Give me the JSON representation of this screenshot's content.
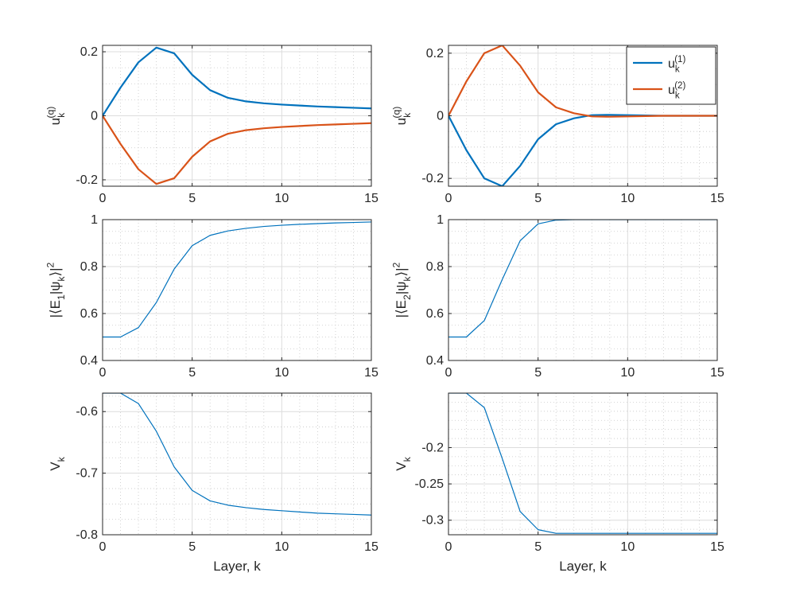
{
  "colors": {
    "series1": "#0072BD",
    "series2": "#D95319",
    "axis": "#262626",
    "grid_major": "#dcdcdc",
    "grid_minor": "#c8c8c8",
    "zero_line": "#cccccc"
  },
  "chart_data": [
    {
      "type": "line",
      "xlabel": "",
      "ylabel": "u_k^(q)",
      "xlim": [
        0,
        15
      ],
      "ylim": [
        -0.22,
        0.22
      ],
      "xticks": [
        0,
        5,
        10,
        15
      ],
      "xtick_labels": [
        "0",
        "5",
        "10",
        "15"
      ],
      "yticks": [
        -0.2,
        0,
        0.2
      ],
      "ytick_labels": [
        "-0.2",
        "0",
        "0.2"
      ],
      "grid": true,
      "minor_grid": true,
      "x": [
        0,
        1,
        2,
        3,
        4,
        5,
        6,
        7,
        8,
        9,
        10,
        11,
        12,
        13,
        14,
        15
      ],
      "series": [
        {
          "values": [
            0,
            0.088,
            0.167,
            0.213,
            0.195,
            0.128,
            0.08,
            0.056,
            0.045,
            0.039,
            0.035,
            0.032,
            0.029,
            0.027,
            0.025,
            0.023
          ],
          "color": "series1",
          "width": 2.2
        },
        {
          "values": [
            0,
            -0.088,
            -0.167,
            -0.213,
            -0.195,
            -0.128,
            -0.08,
            -0.056,
            -0.045,
            -0.039,
            -0.035,
            -0.032,
            -0.029,
            -0.027,
            -0.025,
            -0.023
          ],
          "color": "series2",
          "width": 2.2
        }
      ]
    },
    {
      "type": "line",
      "xlabel": "",
      "ylabel": "u_k^(q)",
      "xlim": [
        0,
        15
      ],
      "ylim": [
        -0.225,
        0.225
      ],
      "xticks": [
        0,
        5,
        10,
        15
      ],
      "xtick_labels": [
        "0",
        "5",
        "10",
        "15"
      ],
      "yticks": [
        -0.2,
        0,
        0.2
      ],
      "ytick_labels": [
        "-0.2",
        "0",
        "0.2"
      ],
      "grid": true,
      "minor_grid": true,
      "legend": {
        "position": "top-right",
        "entries": [
          "u_k^(1)",
          "u_k^(2)"
        ]
      },
      "x": [
        0,
        1,
        2,
        3,
        4,
        5,
        6,
        7,
        8,
        9,
        10,
        11,
        12,
        13,
        14,
        15
      ],
      "series": [
        {
          "name": "u_k^(1)",
          "values": [
            0,
            -0.11,
            -0.2,
            -0.225,
            -0.16,
            -0.075,
            -0.027,
            -0.008,
            0.002,
            0.003,
            0.002,
            0.001,
            0.0,
            0.0,
            0.0,
            0.0
          ],
          "color": "series1",
          "width": 2.2
        },
        {
          "name": "u_k^(2)",
          "values": [
            0,
            0.11,
            0.2,
            0.225,
            0.16,
            0.075,
            0.027,
            0.008,
            -0.002,
            -0.003,
            -0.002,
            -0.001,
            0.0,
            0.0,
            0.0,
            0.0
          ],
          "color": "series2",
          "width": 2.2
        }
      ]
    },
    {
      "type": "line",
      "xlabel": "",
      "ylabel": "|⟨E_1|ψ_k⟩|^2",
      "xlim": [
        0,
        15
      ],
      "ylim": [
        0.4,
        1.0
      ],
      "xticks": [
        0,
        5,
        10,
        15
      ],
      "xtick_labels": [
        "0",
        "5",
        "10",
        "15"
      ],
      "yticks": [
        0.4,
        0.6,
        0.8,
        1.0
      ],
      "ytick_labels": [
        "0.4",
        "0.6",
        "0.8",
        "1"
      ],
      "grid": true,
      "minor_grid": true,
      "x": [
        0,
        1,
        2,
        3,
        4,
        5,
        6,
        7,
        8,
        9,
        10,
        11,
        12,
        13,
        14,
        15
      ],
      "series": [
        {
          "values": [
            0.5,
            0.5,
            0.54,
            0.647,
            0.79,
            0.889,
            0.933,
            0.952,
            0.963,
            0.971,
            0.976,
            0.98,
            0.983,
            0.986,
            0.988,
            0.99
          ],
          "color": "series1",
          "width": 1.2
        }
      ]
    },
    {
      "type": "line",
      "xlabel": "",
      "ylabel": "|⟨E_2|ψ_k⟩|^2",
      "xlim": [
        0,
        15
      ],
      "ylim": [
        0.4,
        1.0
      ],
      "xticks": [
        0,
        5,
        10,
        15
      ],
      "xtick_labels": [
        "0",
        "5",
        "10",
        "15"
      ],
      "yticks": [
        0.4,
        0.6,
        0.8,
        1.0
      ],
      "ytick_labels": [
        "0.4",
        "0.6",
        "0.8",
        "1"
      ],
      "grid": true,
      "minor_grid": true,
      "x": [
        0,
        1,
        2,
        3,
        4,
        5,
        6,
        7,
        8,
        9,
        10,
        11,
        12,
        13,
        14,
        15
      ],
      "series": [
        {
          "values": [
            0.5,
            0.5,
            0.57,
            0.745,
            0.91,
            0.982,
            0.998,
            1.0,
            1.0,
            1.0,
            1.0,
            1.0,
            1.0,
            1.0,
            1.0,
            1.0
          ],
          "color": "series1",
          "width": 1.2
        }
      ]
    },
    {
      "type": "line",
      "xlabel": "Layer, k",
      "ylabel": "V_k",
      "xlim": [
        0,
        15
      ],
      "ylim": [
        -0.8,
        -0.57
      ],
      "xticks": [
        0,
        5,
        10,
        15
      ],
      "xtick_labels": [
        "0",
        "5",
        "10",
        "15"
      ],
      "yticks": [
        -0.8,
        -0.7,
        -0.6
      ],
      "ytick_labels": [
        "-0.8",
        "-0.7",
        "-0.6"
      ],
      "grid": true,
      "minor_grid": true,
      "x": [
        0,
        1,
        2,
        3,
        4,
        5,
        6,
        7,
        8,
        9,
        10,
        11,
        12,
        13,
        14,
        15
      ],
      "series": [
        {
          "values": [
            -0.57,
            -0.57,
            -0.587,
            -0.632,
            -0.69,
            -0.728,
            -0.745,
            -0.752,
            -0.756,
            -0.759,
            -0.761,
            -0.763,
            -0.765,
            -0.766,
            -0.767,
            -0.768
          ],
          "color": "series1",
          "width": 1.2
        }
      ]
    },
    {
      "type": "line",
      "xlabel": "Layer, k",
      "ylabel": "V_k",
      "xlim": [
        0,
        15
      ],
      "ylim": [
        -0.32,
        -0.125
      ],
      "xticks": [
        0,
        5,
        10,
        15
      ],
      "xtick_labels": [
        "0",
        "5",
        "10",
        "15"
      ],
      "yticks": [
        -0.3,
        -0.25,
        -0.2
      ],
      "ytick_labels": [
        "-0.3",
        "-0.25",
        "-0.2"
      ],
      "grid": true,
      "minor_grid": true,
      "x": [
        0,
        1,
        2,
        3,
        4,
        5,
        6,
        7,
        8,
        9,
        10,
        11,
        12,
        13,
        14,
        15
      ],
      "series": [
        {
          "values": [
            -0.125,
            -0.125,
            -0.145,
            -0.215,
            -0.288,
            -0.313,
            -0.318,
            -0.318,
            -0.318,
            -0.318,
            -0.318,
            -0.318,
            -0.318,
            -0.318,
            -0.318,
            -0.318
          ],
          "color": "series1",
          "width": 1.2
        }
      ]
    }
  ]
}
